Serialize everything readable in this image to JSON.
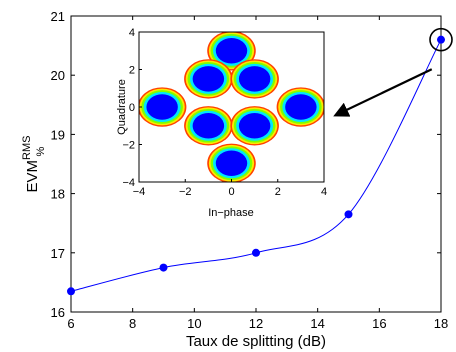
{
  "chart_data": [
    {
      "type": "line",
      "title": "",
      "xlabel": "Taux de splitting (dB)",
      "ylabel": {
        "base": "EVM",
        "sup": "RMS",
        "sub": "%"
      },
      "xlim": [
        6,
        18
      ],
      "ylim": [
        16,
        21
      ],
      "xticks": [
        6,
        8,
        10,
        12,
        14,
        16,
        18
      ],
      "yticks": [
        16,
        17,
        18,
        19,
        20,
        21
      ],
      "grid": false,
      "series": [
        {
          "x": [
            6,
            9,
            12,
            15,
            18
          ],
          "y": [
            16.35,
            16.75,
            17.0,
            17.65,
            20.6
          ],
          "color": "#0000ff",
          "marker": "circle",
          "smoothed": true
        }
      ],
      "annotations": [
        {
          "type": "circle",
          "target": {
            "x": 18,
            "y": 20.6
          }
        },
        {
          "type": "arrow",
          "from": {
            "x": 17.7,
            "y": 20.1
          },
          "to": "inset"
        }
      ]
    },
    {
      "type": "scatter",
      "title": "",
      "xlabel": "In−phase",
      "ylabel": "Quadrature",
      "xlim": [
        -4,
        4
      ],
      "ylim": [
        -4,
        4
      ],
      "xticks": [
        "−4",
        "−2",
        "0",
        "2",
        "4"
      ],
      "yticks": [
        "−4",
        "−2",
        "0",
        "2",
        "4"
      ],
      "xtick_values": [
        -4,
        -2,
        0,
        2,
        4
      ],
      "ytick_values": [
        -4,
        -2,
        0,
        2,
        4
      ],
      "clusters": [
        {
          "x": 0,
          "y": 3
        },
        {
          "x": -1,
          "y": 1.5
        },
        {
          "x": 1,
          "y": 1.5
        },
        {
          "x": -3,
          "y": 0
        },
        {
          "x": 3,
          "y": 0
        },
        {
          "x": -1,
          "y": -1
        },
        {
          "x": 1,
          "y": -1
        },
        {
          "x": 0,
          "y": -3
        }
      ],
      "colors": {
        "core": "#0000ff",
        "mid": "#00e5ff",
        "outer": "#7fff00",
        "edge": "#ffe600",
        "rim": "#ff4000"
      }
    }
  ]
}
